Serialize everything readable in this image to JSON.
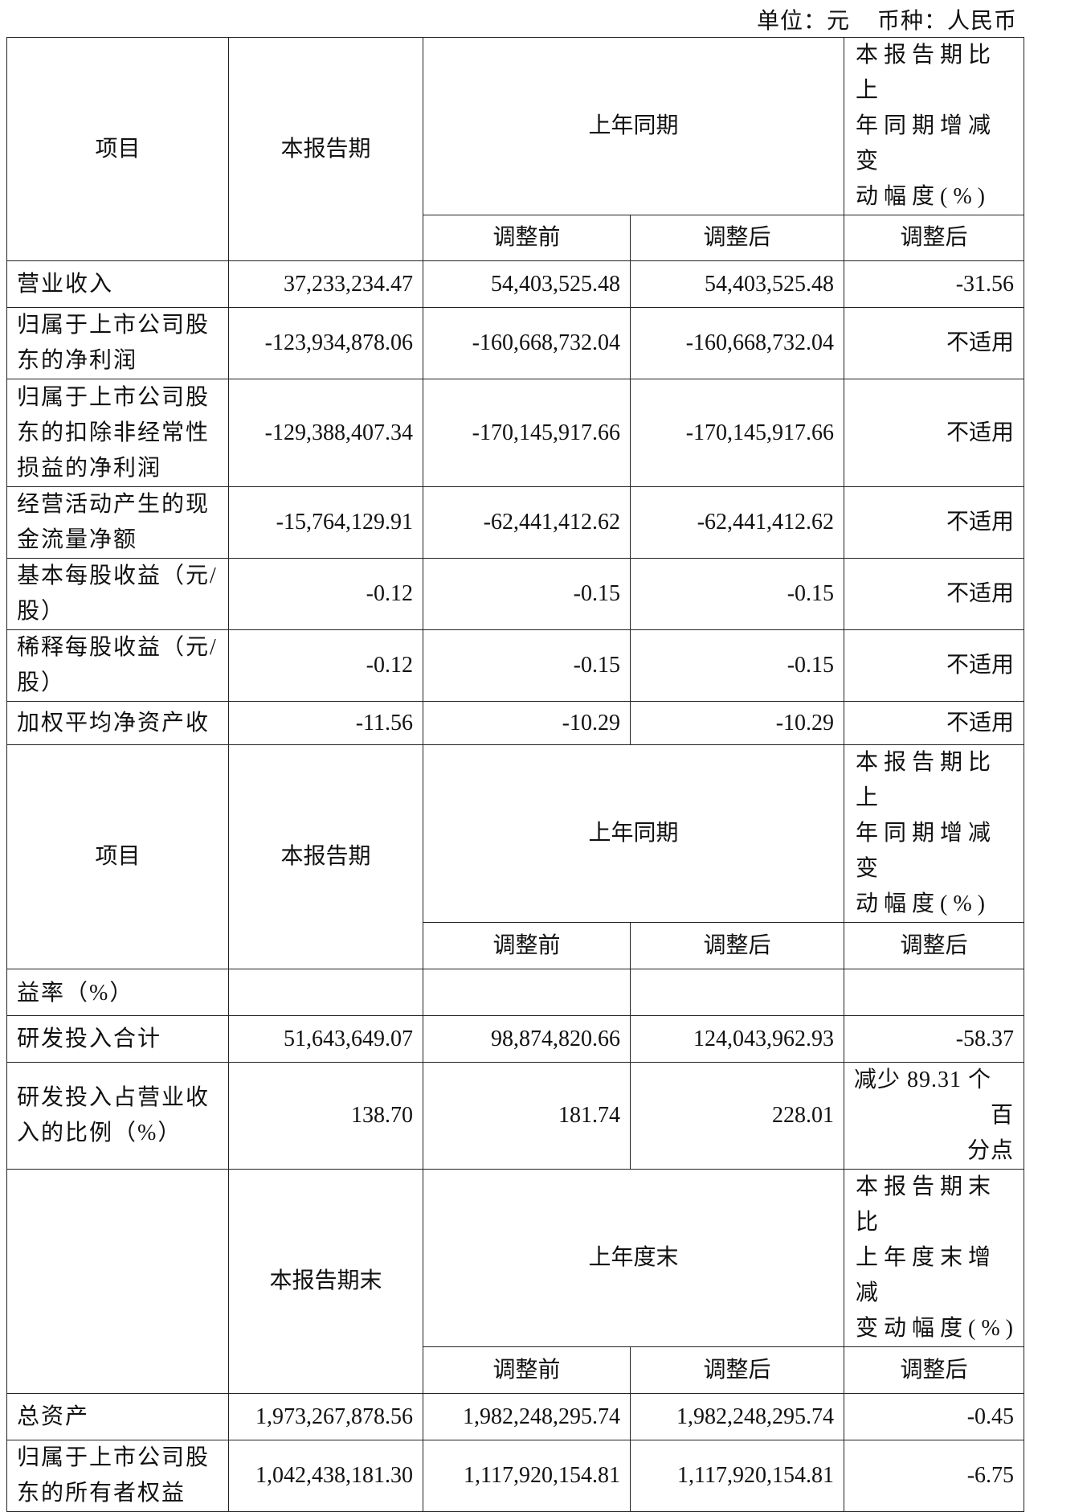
{
  "unit_line": {
    "unit": "单位：元",
    "currency": "币种：人民币"
  },
  "header1": {
    "item": "项目",
    "current": "本报告期",
    "prior": "上年同期",
    "change": "本报告期比上\n年同期增减变\n动幅度(%)",
    "before": "调整前",
    "after": "调整后",
    "change_after": "调整后"
  },
  "rows1": [
    {
      "label": "营业收入",
      "current": "37,233,234.47",
      "before": "54,403,525.48",
      "after": "54,403,525.48",
      "change": "-31.56"
    },
    {
      "label": "归属于上市公司股\n东的净利润",
      "current": "-123,934,878.06",
      "before": "-160,668,732.04",
      "after": "-160,668,732.04",
      "change": "不适用"
    },
    {
      "label": "归属于上市公司股\n东的扣除非经常性\n损益的净利润",
      "current": "-129,388,407.34",
      "before": "-170,145,917.66",
      "after": "-170,145,917.66",
      "change": "不适用"
    },
    {
      "label": "经营活动产生的现\n金流量净额",
      "current": "-15,764,129.91",
      "before": "-62,441,412.62",
      "after": "-62,441,412.62",
      "change": "不适用"
    },
    {
      "label": "基本每股收益（元/\n股）",
      "current": "-0.12",
      "before": "-0.15",
      "after": "-0.15",
      "change": "不适用"
    },
    {
      "label": "稀释每股收益（元/\n股）",
      "current": "-0.12",
      "before": "-0.15",
      "after": "-0.15",
      "change": "不适用"
    },
    {
      "label": "加权平均净资产收",
      "current": "-11.56",
      "before": "-10.29",
      "after": "-10.29",
      "change": "不适用"
    }
  ],
  "header2": {
    "item": "项目",
    "current": "本报告期",
    "prior": "上年同期",
    "change": "本报告期比上\n年同期增减变\n动幅度(%)",
    "before": "调整前",
    "after": "调整后",
    "change_after": "调整后"
  },
  "rows2": [
    {
      "label": "益率（%）",
      "current": "",
      "before": "",
      "after": "",
      "change": ""
    },
    {
      "label": "研发投入合计",
      "current": "51,643,649.07",
      "before": "98,874,820.66",
      "after": "124,043,962.93",
      "change": "-58.37"
    },
    {
      "label": "研发投入占营业收\n入的比例（%）",
      "current": "138.70",
      "before": "181.74",
      "after": "228.01",
      "change": "减少 89.31 个百\n分点"
    }
  ],
  "header3": {
    "item": "",
    "current": "本报告期末",
    "prior": "上年度末",
    "change": "本报告期末比\n上年度末增减\n变动幅度(%)",
    "before": "调整前",
    "after": "调整后",
    "change_after": "调整后"
  },
  "rows3": [
    {
      "label": "总资产",
      "current": "1,973,267,878.56",
      "before": "1,982,248,295.74",
      "after": "1,982,248,295.74",
      "change": "-0.45"
    },
    {
      "label": "归属于上市公司股\n东的所有者权益",
      "current": "1,042,438,181.30",
      "before": "1,117,920,154.81",
      "after": "1,117,920,154.81",
      "change": "-6.75"
    }
  ]
}
